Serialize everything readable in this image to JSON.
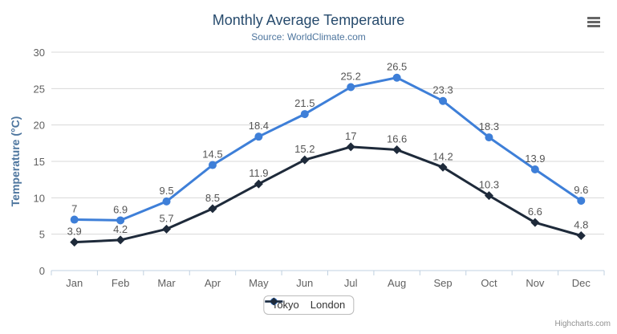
{
  "chart": {
    "credits": "Highcharts.com",
    "export_menu_icon": "hamburger-icon"
  },
  "chart_data": {
    "type": "line",
    "title": "Monthly Average Temperature",
    "subtitle": "Source: WorldClimate.com",
    "categories": [
      "Jan",
      "Feb",
      "Mar",
      "Apr",
      "May",
      "Jun",
      "Jul",
      "Aug",
      "Sep",
      "Oct",
      "Nov",
      "Dec"
    ],
    "series": [
      {
        "name": "Tokyo",
        "color": "#3e7fd8",
        "marker": "circle",
        "values": [
          7,
          6.9,
          9.5,
          14.5,
          18.4,
          21.5,
          25.2,
          26.5,
          23.3,
          18.3,
          13.9,
          9.6
        ]
      },
      {
        "name": "London",
        "color": "#1e2a3a",
        "marker": "diamond",
        "values": [
          3.9,
          4.2,
          5.7,
          8.5,
          11.9,
          15.2,
          17,
          16.6,
          14.2,
          10.3,
          6.6,
          4.8
        ]
      }
    ],
    "xlabel": "",
    "ylabel": "Temperature (°C)",
    "ylim": [
      0,
      30
    ],
    "yticks": [
      0,
      5,
      10,
      15,
      20,
      25,
      30
    ],
    "grid": true,
    "legend_position": "bottom-center",
    "data_labels": true
  },
  "colors": {
    "background": "#ffffff",
    "title": "#274b6d",
    "subtitle": "#4d759e",
    "axis_title": "#4d759e",
    "tick_label": "#606060",
    "data_label": "#555555",
    "grid_line": "#d8d8d8",
    "axis_line": "#c0d0e0",
    "legend_text": "#333333",
    "legend_border": "#bbbbbb",
    "credits": "#909090",
    "menu_icon": "#666666"
  }
}
